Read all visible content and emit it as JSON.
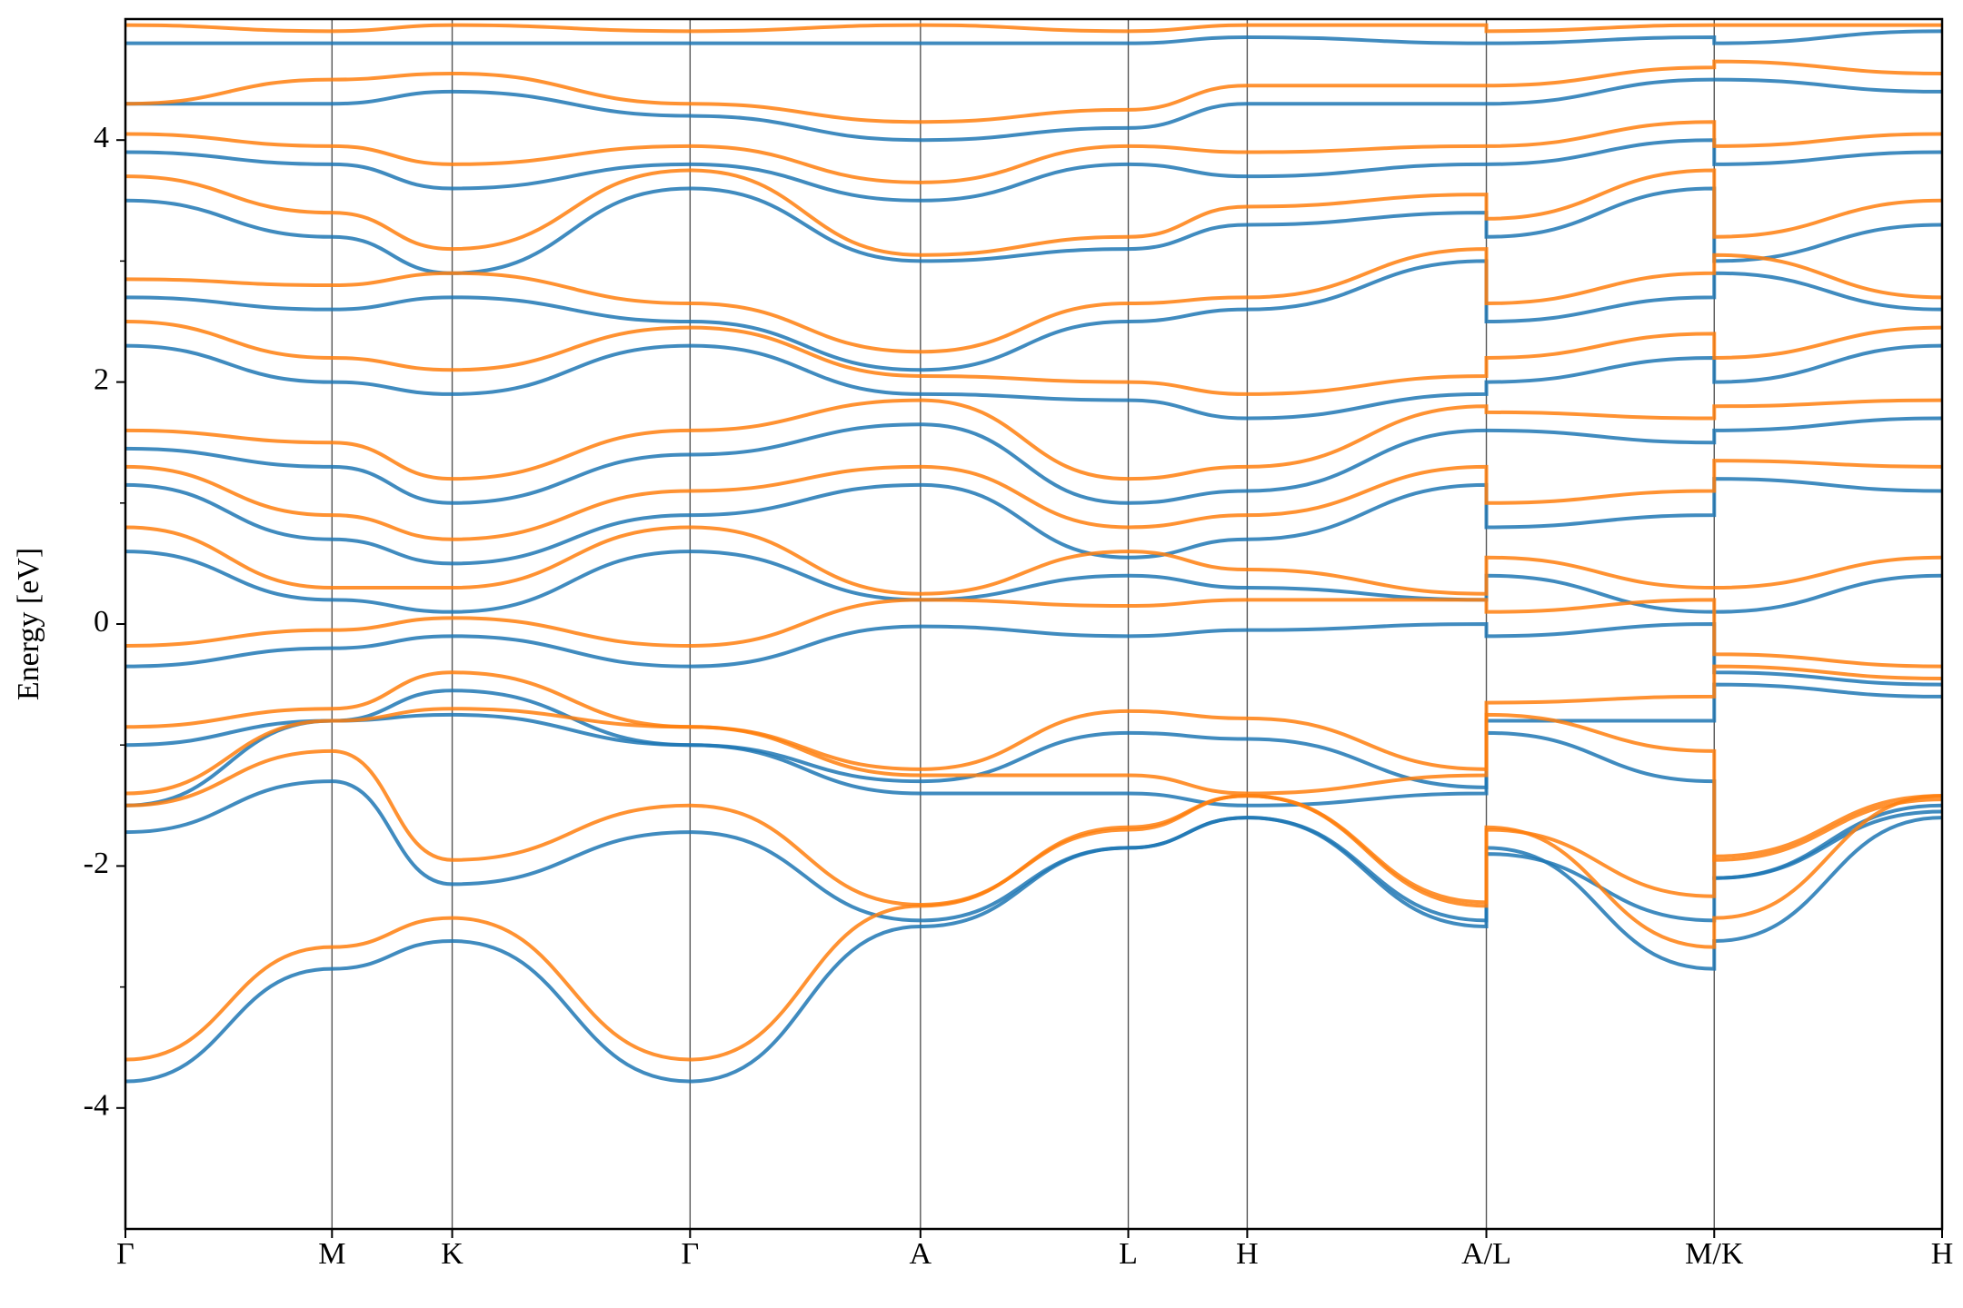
{
  "chart_data": {
    "type": "line",
    "ylabel": "Energy [eV]",
    "x": [
      0,
      1.65,
      2.61,
      4.51,
      6.35,
      8.01,
      8.96,
      10.87,
      10.87,
      12.69,
      12.69,
      14.51
    ],
    "xlim": [
      0,
      14.51
    ],
    "xticks": [
      {
        "value": 0,
        "label": "Γ"
      },
      {
        "value": 1.65,
        "label": "M"
      },
      {
        "value": 2.61,
        "label": "K"
      },
      {
        "value": 4.51,
        "label": "Γ"
      },
      {
        "value": 6.35,
        "label": "A"
      },
      {
        "value": 8.01,
        "label": "L"
      },
      {
        "value": 8.96,
        "label": "H"
      },
      {
        "value": 10.87,
        "label": "A/L"
      },
      {
        "value": 12.69,
        "label": "M/K"
      },
      {
        "value": 14.51,
        "label": "H"
      }
    ],
    "ylim": [
      -5,
      5
    ],
    "yticks": [
      -4,
      -2,
      0,
      2,
      4
    ],
    "yminorticks": [
      -3,
      -1,
      1,
      3
    ],
    "xgrid": true,
    "series": [
      {
        "color": "#1f77b4",
        "values": [
          -3.78,
          -2.85,
          -2.62,
          -3.78,
          -2.5,
          -1.85,
          -1.6,
          -2.5,
          -1.85,
          -2.85,
          -2.62,
          -1.6
        ]
      },
      {
        "color": "#1f77b4",
        "values": [
          -1.72,
          -1.3,
          -2.15,
          -1.72,
          -2.45,
          -1.85,
          -1.6,
          -2.45,
          -1.9,
          -2.45,
          -2.1,
          -1.55
        ]
      },
      {
        "color": "#1f77b4",
        "values": [
          -1.5,
          -0.8,
          -0.75,
          -1.0,
          -1.4,
          -1.4,
          -1.5,
          -1.4,
          -0.9,
          -1.3,
          -2.1,
          -1.5
        ]
      },
      {
        "color": "#1f77b4",
        "values": [
          -1.0,
          -0.8,
          -0.55,
          -1.0,
          -1.3,
          -0.9,
          -0.95,
          -1.35,
          -0.8,
          -0.8,
          -0.5,
          -0.6
        ]
      },
      {
        "color": "#1f77b4",
        "values": [
          -0.35,
          -0.2,
          -0.1,
          -0.35,
          -0.02,
          -0.1,
          -0.05,
          0,
          -0.1,
          0,
          -0.4,
          -0.5
        ]
      },
      {
        "color": "#1f77b4",
        "values": [
          0.6,
          0.2,
          0.1,
          0.6,
          0.2,
          0.4,
          0.3,
          0.2,
          0.4,
          0.1,
          0.1,
          0.4
        ]
      },
      {
        "color": "#1f77b4",
        "values": [
          1.15,
          0.7,
          0.5,
          0.9,
          1.15,
          0.55,
          0.7,
          1.15,
          0.8,
          0.9,
          1.2,
          1.1
        ]
      },
      {
        "color": "#1f77b4",
        "values": [
          1.45,
          1.3,
          1.0,
          1.4,
          1.65,
          1.0,
          1.1,
          1.6,
          1.6,
          1.5,
          1.6,
          1.7
        ]
      },
      {
        "color": "#1f77b4",
        "values": [
          2.3,
          2.0,
          1.9,
          2.3,
          1.9,
          1.85,
          1.7,
          1.9,
          2.0,
          2.2,
          2.0,
          2.3
        ]
      },
      {
        "color": "#1f77b4",
        "values": [
          2.7,
          2.6,
          2.7,
          2.5,
          2.1,
          2.5,
          2.6,
          3.0,
          2.5,
          2.7,
          2.9,
          2.6
        ]
      },
      {
        "color": "#1f77b4",
        "values": [
          3.5,
          3.2,
          2.9,
          3.6,
          3.0,
          3.1,
          3.3,
          3.4,
          3.2,
          3.6,
          3.0,
          3.3
        ]
      },
      {
        "color": "#1f77b4",
        "values": [
          3.9,
          3.8,
          3.6,
          3.8,
          3.5,
          3.8,
          3.7,
          3.8,
          3.8,
          4.0,
          3.8,
          3.9
        ]
      },
      {
        "color": "#1f77b4",
        "values": [
          4.3,
          4.3,
          4.4,
          4.2,
          4.0,
          4.1,
          4.3,
          4.3,
          4.3,
          4.5,
          4.5,
          4.4
        ]
      },
      {
        "color": "#1f77b4",
        "values": [
          4.8,
          4.8,
          4.8,
          4.8,
          4.8,
          4.8,
          4.85,
          4.8,
          4.8,
          4.85,
          4.8,
          4.9
        ]
      },
      {
        "color": "#ff7f0e",
        "values": [
          -3.6,
          -2.67,
          -2.43,
          -3.6,
          -2.33,
          -1.68,
          -1.42,
          -2.33,
          -1.68,
          -2.67,
          -2.43,
          -1.42
        ]
      },
      {
        "color": "#ff7f0e",
        "values": [
          -1.5,
          -1.05,
          -1.95,
          -1.5,
          -2.32,
          -1.7,
          -1.42,
          -2.3,
          -1.7,
          -2.25,
          -1.92,
          -1.42
        ]
      },
      {
        "color": "#ff7f0e",
        "values": [
          -1.4,
          -0.8,
          -0.7,
          -0.85,
          -1.25,
          -1.25,
          -1.4,
          -1.25,
          -0.75,
          -1.05,
          -1.95,
          -1.45
        ]
      },
      {
        "color": "#ff7f0e",
        "values": [
          -0.85,
          -0.7,
          -0.4,
          -0.85,
          -1.2,
          -0.72,
          -0.78,
          -1.2,
          -0.65,
          -0.6,
          -0.35,
          -0.45
        ]
      },
      {
        "color": "#ff7f0e",
        "values": [
          -0.18,
          -0.05,
          0.05,
          -0.18,
          0.2,
          0.15,
          0.2,
          0.2,
          0.1,
          0.2,
          -0.25,
          -0.35
        ]
      },
      {
        "color": "#ff7f0e",
        "values": [
          0.8,
          0.3,
          0.3,
          0.8,
          0.25,
          0.6,
          0.45,
          0.25,
          0.55,
          0.3,
          0.3,
          0.55
        ]
      },
      {
        "color": "#ff7f0e",
        "values": [
          1.3,
          0.9,
          0.7,
          1.1,
          1.3,
          0.8,
          0.9,
          1.3,
          1.0,
          1.1,
          1.35,
          1.3
        ]
      },
      {
        "color": "#ff7f0e",
        "values": [
          1.6,
          1.5,
          1.2,
          1.6,
          1.85,
          1.2,
          1.3,
          1.8,
          1.75,
          1.7,
          1.8,
          1.85
        ]
      },
      {
        "color": "#ff7f0e",
        "values": [
          2.5,
          2.2,
          2.1,
          2.45,
          2.05,
          2.0,
          1.9,
          2.05,
          2.2,
          2.4,
          2.2,
          2.45
        ]
      },
      {
        "color": "#ff7f0e",
        "values": [
          2.85,
          2.8,
          2.9,
          2.65,
          2.25,
          2.65,
          2.7,
          3.1,
          2.65,
          2.9,
          3.05,
          2.7
        ]
      },
      {
        "color": "#ff7f0e",
        "values": [
          3.7,
          3.4,
          3.1,
          3.75,
          3.05,
          3.2,
          3.45,
          3.55,
          3.35,
          3.75,
          3.2,
          3.5
        ]
      },
      {
        "color": "#ff7f0e",
        "values": [
          4.05,
          3.95,
          3.8,
          3.95,
          3.65,
          3.95,
          3.9,
          3.95,
          3.95,
          4.15,
          3.95,
          4.05
        ]
      },
      {
        "color": "#ff7f0e",
        "values": [
          4.3,
          4.5,
          4.55,
          4.3,
          4.15,
          4.25,
          4.45,
          4.45,
          4.45,
          4.6,
          4.65,
          4.55
        ]
      },
      {
        "color": "#ff7f0e",
        "values": [
          4.95,
          4.9,
          4.95,
          4.9,
          4.95,
          4.9,
          4.95,
          4.95,
          4.9,
          4.95,
          4.95,
          4.95
        ]
      }
    ]
  }
}
